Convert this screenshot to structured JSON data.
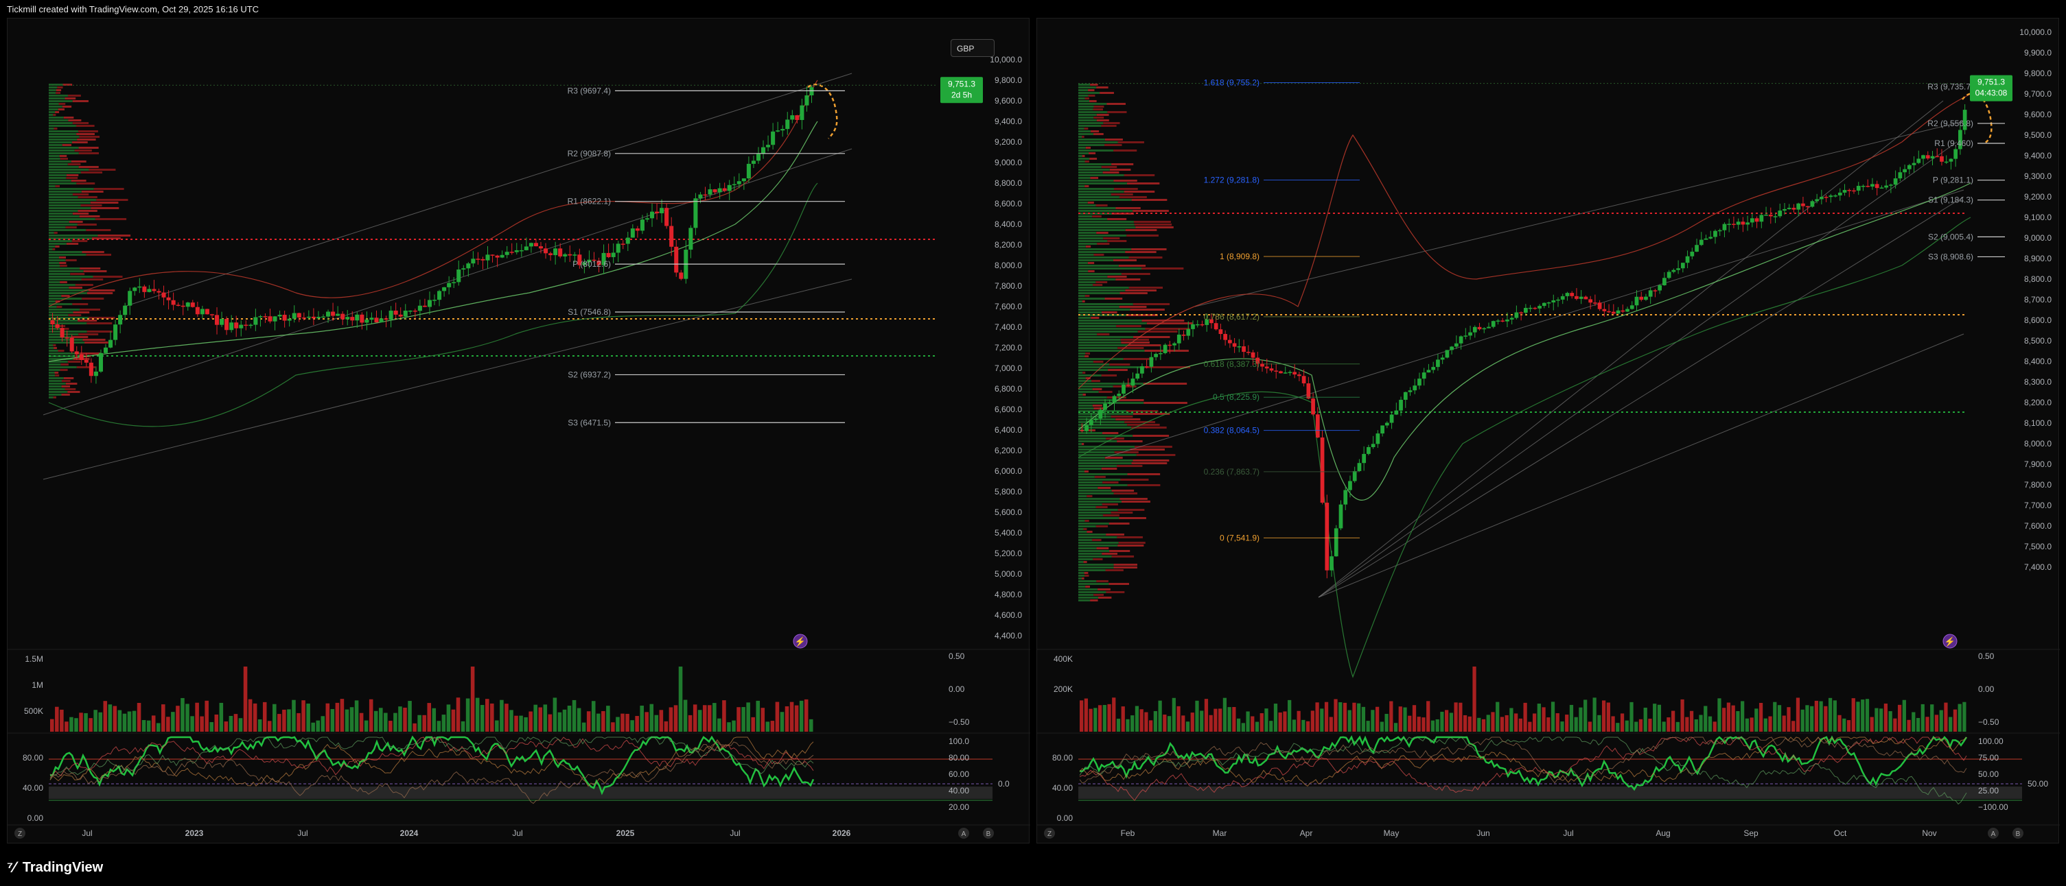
{
  "header": {
    "text": "Tickmill created with TradingView.com, Oct 29, 2025 16:16 UTC"
  },
  "footer": {
    "brand": "TradingView"
  },
  "colors": {
    "up": "#22a83a",
    "down": "#e0222a",
    "price_tag": "#22a83a",
    "pivot_line": "#cccccc",
    "fib_blue": "#2962ff",
    "fib_orange": "#f0a030"
  },
  "left_chart": {
    "currency_button": "GBP",
    "price_axis": [
      "10,000.0",
      "9,800.0",
      "9,600.0",
      "9,400.0",
      "9,200.0",
      "9,000.0",
      "8,800.0",
      "8,600.0",
      "8,400.0",
      "8,200.0",
      "8,000.0",
      "7,800.0",
      "7,600.0",
      "7,400.0",
      "7,200.0",
      "7,000.0",
      "6,800.0",
      "6,600.0",
      "6,400.0",
      "6,200.0",
      "6,000.0",
      "5,800.0",
      "5,600.0",
      "5,400.0",
      "5,200.0",
      "5,000.0",
      "4,800.0",
      "4,600.0",
      "4,400.0"
    ],
    "last_price": "9,751.3",
    "countdown": "2d 5h",
    "pivots": [
      {
        "label": "R3 (9697.4)",
        "value": 9697.4
      },
      {
        "label": "R2 (9087.8)",
        "value": 9087.8
      },
      {
        "label": "R1 (8622.1)",
        "value": 8622.1
      },
      {
        "label": "P (8012.6)",
        "value": 8012.6
      },
      {
        "label": "S1 (7546.8)",
        "value": 7546.8
      },
      {
        "label": "S2 (6937.2)",
        "value": 6937.2
      },
      {
        "label": "S3 (6471.5)",
        "value": 6471.5
      }
    ],
    "volume_axis": [
      "1.5M",
      "1M",
      "500K"
    ],
    "volume_right_axis": [
      "0.50",
      "0.00",
      "−0.50"
    ],
    "osc_left_axis": [
      "80.00",
      "40.00",
      "0.00"
    ],
    "osc_right_axis": [
      "100.0",
      "80.00",
      "60.00",
      "40.00",
      "20.00"
    ],
    "osc_mid_label": "0.0",
    "time_axis": [
      "Jul",
      "2023",
      "Jul",
      "2024",
      "Jul",
      "2025",
      "Jul",
      "2026"
    ],
    "corner_left": "Z",
    "corner_right_a": "A",
    "corner_right_b": "B"
  },
  "right_chart": {
    "price_axis": [
      "10,000.0",
      "9,900.0",
      "9,800.0",
      "9,700.0",
      "9,600.0",
      "9,500.0",
      "9,400.0",
      "9,300.0",
      "9,200.0",
      "9,100.0",
      "9,000.0",
      "8,900.0",
      "8,800.0",
      "8,700.0",
      "8,600.0",
      "8,500.0",
      "8,400.0",
      "8,300.0",
      "8,200.0",
      "8,100.0",
      "8,000.0",
      "7,900.0",
      "7,800.0",
      "7,700.0",
      "7,600.0",
      "7,500.0",
      "7,400.0"
    ],
    "last_price": "9,751.3",
    "countdown": "04:43:08",
    "pivots": [
      {
        "label": "R3 (9,735.7)",
        "value": 9735.7
      },
      {
        "label": "R2 (9,556.8)",
        "value": 9556.8
      },
      {
        "label": "R1 (9,460)",
        "value": 9460
      },
      {
        "label": "P (9,281.1)",
        "value": 9281.1
      },
      {
        "label": "S1 (9,184.3)",
        "value": 9184.3
      },
      {
        "label": "S2 (9,005.4)",
        "value": 9005.4
      },
      {
        "label": "S3 (8,908.6)",
        "value": 8908.6
      }
    ],
    "fibs": [
      {
        "label": "1.618 (9,755.2)",
        "value": 9755.2,
        "color": "#2962ff"
      },
      {
        "label": "1.272 (9,281.8)",
        "value": 9281.8,
        "color": "#2962ff"
      },
      {
        "label": "1 (8,909.8)",
        "value": 8909.8,
        "color": "#f0a030"
      },
      {
        "label": "0.786 (8,617.2)",
        "value": 8617.2,
        "color": "#7a8a3a"
      },
      {
        "label": "0.618 (8,387.3)",
        "value": 8387.3,
        "color": "#3a7a3a"
      },
      {
        "label": "0.5 (8,225.9)",
        "value": 8225.9,
        "color": "#2a8a4a"
      },
      {
        "label": "0.382 (8,064.5)",
        "value": 8064.5,
        "color": "#2962ff"
      },
      {
        "label": "0.236 (7,863.7)",
        "value": 7863.7,
        "color": "#3a5a3a"
      },
      {
        "label": "0 (7,541.9)",
        "value": 7541.9,
        "color": "#f0a030"
      }
    ],
    "volume_axis": [
      "400K",
      "200K"
    ],
    "volume_right_axis": [
      "0.50",
      "0.00",
      "−0.50"
    ],
    "osc_left_axis": [
      "80.00",
      "40.00",
      "0.00"
    ],
    "osc_right_axis": [
      "100.00",
      "75.00",
      "50.00",
      "25.00",
      "−100.00"
    ],
    "osc_mid_label": "50.00",
    "time_axis": [
      "Feb",
      "Mar",
      "Apr",
      "May",
      "Jun",
      "Jul",
      "Aug",
      "Sep",
      "Oct",
      "Nov"
    ],
    "corner_left": "Z",
    "corner_right_a": "A",
    "corner_right_b": "B"
  }
}
